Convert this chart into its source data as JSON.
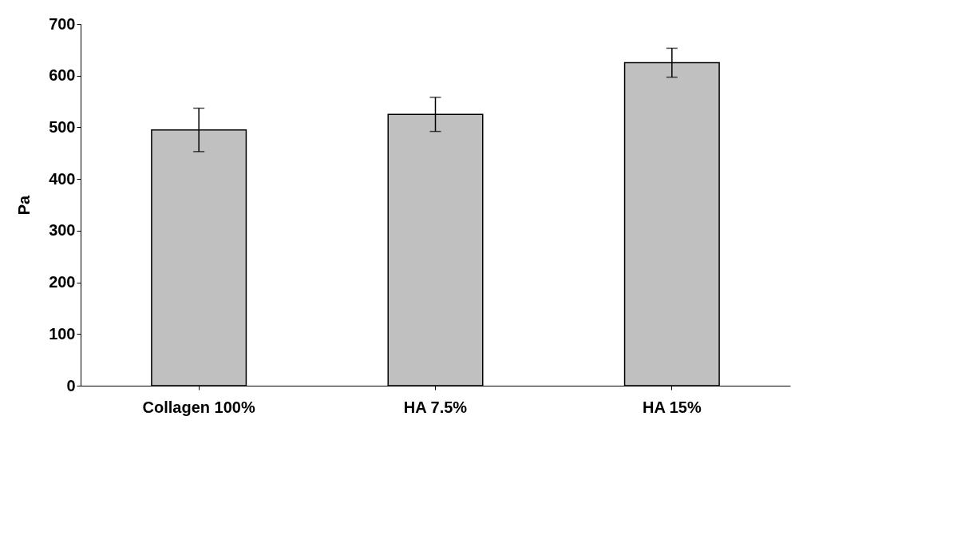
{
  "chart_data": {
    "type": "bar",
    "ylabel": "Pa",
    "categories": [
      "Collagen 100%",
      "HA 7.5%",
      "HA 15%"
    ],
    "values": [
      495,
      525,
      625
    ],
    "errors": [
      42,
      33,
      28
    ],
    "color": "#c0c0c0",
    "ylim": [
      0,
      700
    ],
    "yticks": [
      0,
      100,
      200,
      300,
      400,
      500,
      600,
      700
    ],
    "grid": false
  }
}
